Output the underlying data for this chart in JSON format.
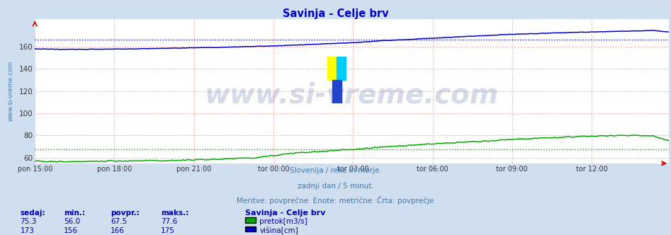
{
  "title": "Savinja - Celje brv",
  "title_color": "#0000cc",
  "background_color": "#d0dff0",
  "plot_bg_color": "#ffffff",
  "grid_color": "#ffbbbb",
  "xticklabels": [
    "pon 15:00",
    "pon 18:00",
    "pon 21:00",
    "tor 00:00",
    "tor 03:00",
    "tor 06:00",
    "tor 09:00",
    "tor 12:00"
  ],
  "xtick_positions": [
    0,
    36,
    72,
    108,
    144,
    180,
    216,
    252
  ],
  "ylim": [
    55,
    185
  ],
  "yticks": [
    60,
    80,
    100,
    120,
    140,
    160
  ],
  "n_points": 288,
  "flow_color": "#00aa00",
  "height_color": "#0000cc",
  "flow_avg": 67.5,
  "height_avg": 166,
  "flow_min": 56.0,
  "flow_max": 77.6,
  "flow_current": 75.3,
  "height_min": 156,
  "height_max": 175,
  "height_current": 173,
  "watermark": "www.si-vreme.com",
  "watermark_color": "#1a3a8a",
  "watermark_alpha": 0.18,
  "watermark_size": 28,
  "subtitle1": "Slovenija / reke in morje.",
  "subtitle2": "zadnji dan / 5 minut.",
  "subtitle3": "Meritve: povprečne  Enote: metrične  Črta: povprečje",
  "subtitle_color": "#4477aa",
  "legend_title": "Savinja - Celje brv",
  "legend_title_color": "#0000aa",
  "legend_flow_label": "pretok[m3/s]",
  "legend_height_label": "višina[cm]",
  "table_headers": [
    "sedaj:",
    "min.:",
    "povpr.:",
    "maks.:"
  ],
  "table_color": "#0000aa",
  "left_label": "www.si-vreme.com",
  "left_label_color": "#4477aa",
  "arrow_color": "#cc0000",
  "logo_colors": [
    "#ffff00",
    "#00ccff",
    "#2244cc"
  ]
}
